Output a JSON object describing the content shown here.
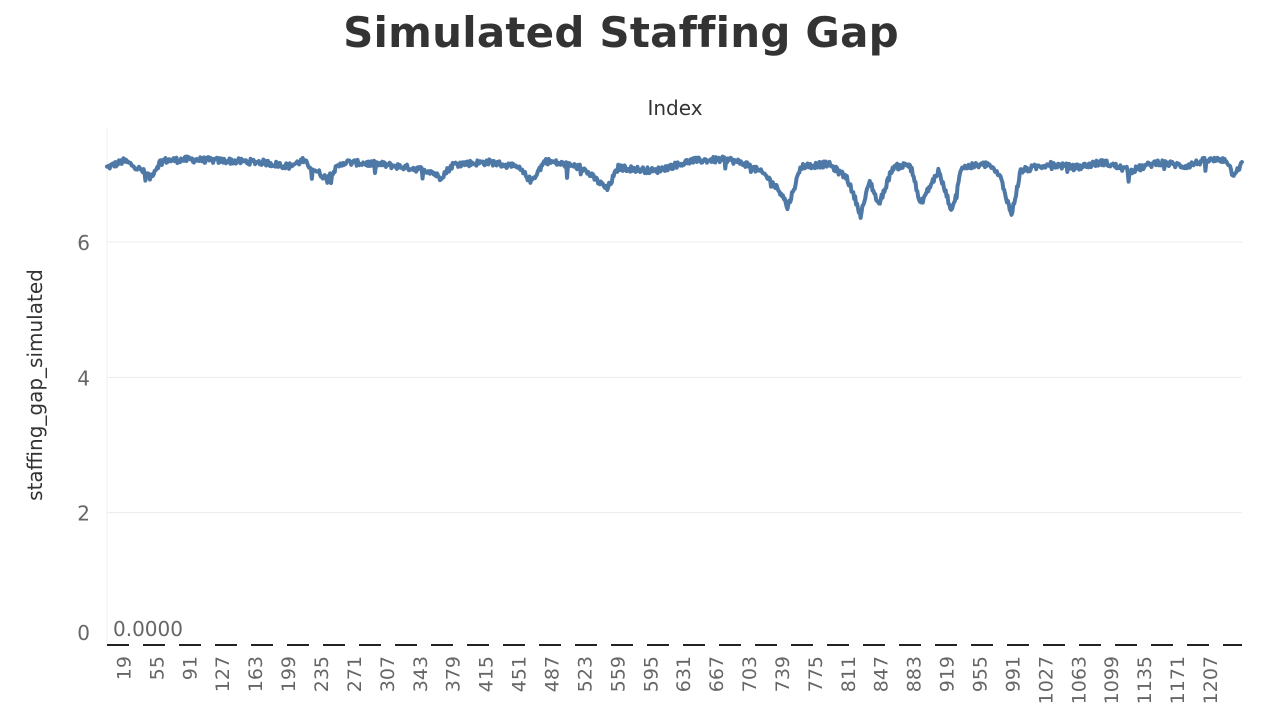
{
  "chart_data": {
    "type": "line",
    "title": "Simulated Staffing Gap",
    "xlabel": "Index",
    "ylabel": "staffing_gap_simulated",
    "x_tick_labels": [
      "19",
      "55",
      "91",
      "127",
      "163",
      "199",
      "235",
      "271",
      "307",
      "343",
      "379",
      "415",
      "451",
      "487",
      "523",
      "559",
      "595",
      "631",
      "667",
      "703",
      "739",
      "775",
      "811",
      "847",
      "883",
      "919",
      "955",
      "991",
      "1027",
      "1063",
      "1099",
      "1135",
      "1171",
      "1207"
    ],
    "y_ticks": [
      0,
      2,
      4,
      6
    ],
    "ylim": [
      0,
      7.5
    ],
    "xlim": [
      1,
      1242
    ],
    "grid": true,
    "reference_line": {
      "value": 0,
      "label": "0.0000",
      "style": "dashed",
      "color": "#222222"
    },
    "series": [
      {
        "color": "#4e79a7",
        "baseline": 7.15,
        "keypoints": [
          [
            1,
            7.1
          ],
          [
            20,
            7.2
          ],
          [
            40,
            7.05
          ],
          [
            48,
            6.95
          ],
          [
            60,
            7.2
          ],
          [
            90,
            7.22
          ],
          [
            130,
            7.2
          ],
          [
            170,
            7.18
          ],
          [
            200,
            7.12
          ],
          [
            215,
            7.2
          ],
          [
            230,
            7.05
          ],
          [
            240,
            6.95
          ],
          [
            260,
            7.18
          ],
          [
            300,
            7.15
          ],
          [
            330,
            7.1
          ],
          [
            355,
            7.05
          ],
          [
            365,
            6.95
          ],
          [
            380,
            7.15
          ],
          [
            420,
            7.18
          ],
          [
            450,
            7.1
          ],
          [
            465,
            6.9
          ],
          [
            480,
            7.2
          ],
          [
            520,
            7.1
          ],
          [
            548,
            6.78
          ],
          [
            560,
            7.1
          ],
          [
            600,
            7.05
          ],
          [
            640,
            7.2
          ],
          [
            680,
            7.22
          ],
          [
            700,
            7.15
          ],
          [
            720,
            7.0
          ],
          [
            740,
            6.7
          ],
          [
            745,
            6.5
          ],
          [
            760,
            7.12
          ],
          [
            790,
            7.15
          ],
          [
            810,
            6.95
          ],
          [
            820,
            6.6
          ],
          [
            825,
            6.4
          ],
          [
            835,
            6.9
          ],
          [
            845,
            6.55
          ],
          [
            860,
            7.1
          ],
          [
            880,
            7.15
          ],
          [
            890,
            6.55
          ],
          [
            898,
            6.75
          ],
          [
            910,
            7.05
          ],
          [
            925,
            6.45
          ],
          [
            935,
            7.1
          ],
          [
            965,
            7.15
          ],
          [
            978,
            6.95
          ],
          [
            990,
            6.4
          ],
          [
            1000,
            7.05
          ],
          [
            1030,
            7.15
          ],
          [
            1060,
            7.1
          ],
          [
            1090,
            7.18
          ],
          [
            1120,
            7.05
          ],
          [
            1150,
            7.18
          ],
          [
            1180,
            7.12
          ],
          [
            1200,
            7.2
          ],
          [
            1225,
            7.22
          ],
          [
            1232,
            7.0
          ],
          [
            1242,
            7.15
          ]
        ]
      }
    ]
  }
}
